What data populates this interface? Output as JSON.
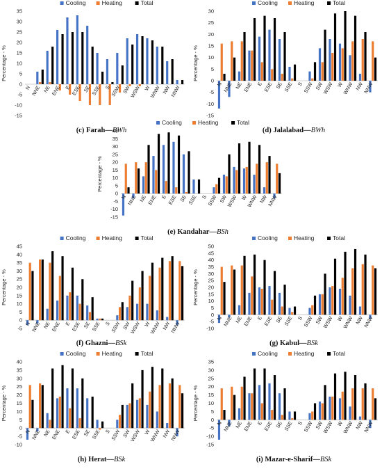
{
  "colors": {
    "cooling": "#4472C4",
    "heating": "#ED7D31",
    "total": "#000000"
  },
  "legend_labels": [
    "Cooling",
    "Heating",
    "Total"
  ],
  "chart_data": [
    {
      "type": "bar",
      "id": "c",
      "caption": "(c) Farah—BWh",
      "ylabel": "Percentage - %",
      "ylim": [
        -15,
        35
      ],
      "yticks": [
        -15,
        -10,
        -5,
        0,
        5,
        10,
        15,
        20,
        25,
        30,
        35
      ],
      "legend": "top",
      "categories": [
        "N",
        "NNE",
        "NE",
        "ENE",
        "E",
        "ESE",
        "SE",
        "SSE",
        "S",
        "SSW",
        "SW",
        "WSW",
        "W",
        "WNW",
        "NW",
        "NNW"
      ],
      "series": [
        {
          "name": "Cooling",
          "values": [
            0,
            6,
            16,
            26,
            32,
            33,
            28,
            15,
            12,
            15,
            22,
            24,
            22,
            18,
            11,
            2
          ]
        },
        {
          "name": "Heating",
          "values": [
            0,
            1,
            1,
            -3,
            -5,
            -8,
            -10,
            -10,
            -10,
            -4,
            -1,
            -1,
            0,
            0,
            0,
            0
          ]
        },
        {
          "name": "Total",
          "values": [
            0,
            7,
            18,
            24,
            25,
            25,
            18,
            6,
            1,
            9,
            19,
            23,
            21,
            18,
            12,
            2
          ]
        }
      ]
    },
    {
      "type": "bar",
      "id": "d",
      "caption": "(d) Jalalabad—BWh",
      "ylabel": "Percentage - %",
      "ylim": [
        -15,
        30
      ],
      "yticks": [
        -15,
        -10,
        -5,
        0,
        5,
        10,
        15,
        20,
        25,
        30
      ],
      "legend": "top",
      "categories": [
        "N",
        "NNE",
        "NE",
        "ENE",
        "E",
        "ESE",
        "SE",
        "SSE",
        "S",
        "SSW",
        "SW",
        "WSW",
        "W",
        "WNW",
        "NW",
        "NNW"
      ],
      "series": [
        {
          "name": "Cooling",
          "values": [
            -12,
            -7,
            4,
            13,
            19,
            22,
            18,
            6,
            0,
            4,
            14,
            18,
            16,
            11,
            3,
            -5
          ]
        },
        {
          "name": "Heating",
          "values": [
            16,
            17,
            17,
            13,
            8,
            5,
            3,
            1,
            0,
            1,
            8,
            12,
            14,
            17,
            18,
            17
          ]
        },
        {
          "name": "Total",
          "values": [
            3,
            10,
            21,
            27,
            28,
            27,
            21,
            7,
            0,
            8,
            22,
            29,
            30,
            28,
            21,
            10
          ]
        }
      ]
    },
    {
      "type": "bar",
      "id": "e",
      "caption": "(e) Kandahar—BSh",
      "ylabel": "Percentage - %",
      "ylim": [
        -15,
        40
      ],
      "yticks": [
        -15,
        -10,
        -5,
        0,
        5,
        10,
        15,
        20,
        25,
        30,
        35,
        40
      ],
      "legend": "top",
      "categories": [
        "N",
        "NNE",
        "NE",
        "ENE",
        "E",
        "ESE",
        "SE",
        "SSE",
        "S",
        "SSW",
        "SW",
        "WSW",
        "W",
        "WNW",
        "NW",
        "NNW"
      ],
      "series": [
        {
          "name": "Cooling",
          "values": [
            -14,
            -3,
            11,
            24,
            31,
            33,
            25,
            9,
            0,
            4,
            12,
            17,
            16,
            12,
            4,
            -3
          ]
        },
        {
          "name": "Heating",
          "values": [
            19,
            20,
            20,
            15,
            8,
            4,
            1,
            0,
            0,
            6,
            11,
            15,
            17,
            19,
            20,
            19
          ]
        },
        {
          "name": "Total",
          "values": [
            4,
            16,
            31,
            38,
            39,
            37,
            27,
            9,
            0,
            10,
            25,
            32,
            33,
            31,
            24,
            13
          ]
        }
      ]
    },
    {
      "type": "bar",
      "id": "f",
      "caption": "(f) Ghazni—BSk",
      "ylabel": "Percentage - %",
      "ylim": [
        -5,
        45
      ],
      "yticks": [
        -5,
        0,
        5,
        10,
        15,
        20,
        25,
        30,
        35,
        40,
        45
      ],
      "legend": "top",
      "categories": [
        "N",
        "NNE",
        "NE",
        "ENE",
        "E",
        "ESE",
        "SE",
        "SSE",
        "S",
        "SSW",
        "SW",
        "WSW",
        "W",
        "WNW",
        "NW",
        "NNW"
      ],
      "series": [
        {
          "name": "Cooling",
          "values": [
            -3,
            -2,
            7,
            12,
            15,
            15,
            9,
            1,
            0,
            3,
            8,
            10,
            10,
            6,
            2,
            -3
          ]
        },
        {
          "name": "Heating",
          "values": [
            35,
            37,
            35,
            27,
            17,
            10,
            5,
            1,
            0,
            8,
            15,
            20,
            27,
            32,
            36,
            36
          ]
        },
        {
          "name": "Total",
          "values": [
            30,
            37,
            42,
            39,
            32,
            25,
            14,
            1,
            0,
            11,
            24,
            30,
            35,
            38,
            39,
            33
          ]
        }
      ]
    },
    {
      "type": "bar",
      "id": "g",
      "caption": "(g) Kabul—BSk",
      "ylabel": "Percentage - %",
      "ylim": [
        -10,
        50
      ],
      "yticks": [
        -10,
        -5,
        0,
        5,
        10,
        15,
        20,
        25,
        30,
        35,
        40,
        45,
        50
      ],
      "legend": "top",
      "categories": [
        "N",
        "NNE",
        "NE",
        "ENE",
        "E",
        "ESE",
        "SE",
        "SSE",
        "S",
        "SSW",
        "SW",
        "WSW",
        "W",
        "WNW",
        "NW",
        "NNW"
      ],
      "series": [
        {
          "name": "Cooling",
          "values": [
            -6,
            -2,
            7,
            16,
            20,
            21,
            16,
            5,
            0,
            5,
            15,
            20,
            19,
            14,
            6,
            -3
          ]
        },
        {
          "name": "Heating",
          "values": [
            35,
            36,
            36,
            28,
            19,
            11,
            6,
            2,
            0,
            7,
            15,
            21,
            27,
            34,
            37,
            36
          ]
        },
        {
          "name": "Total",
          "values": [
            24,
            33,
            43,
            44,
            40,
            32,
            22,
            6,
            0,
            14,
            30,
            41,
            46,
            48,
            44,
            34
          ]
        }
      ]
    },
    {
      "type": "bar",
      "id": "h",
      "caption": "(h) Herat—BSk",
      "ylabel": "Percentage - %",
      "ylim": [
        -10,
        40
      ],
      "yticks": [
        -10,
        -5,
        0,
        5,
        10,
        15,
        20,
        25,
        30,
        35,
        40
      ],
      "legend": "top",
      "categories": [
        "N",
        "NNE",
        "NE",
        "ENE",
        "E",
        "ESE",
        "SE",
        "SSE",
        "S",
        "SSW",
        "SW",
        "WSW",
        "W",
        "WNW",
        "NW",
        "NNW"
      ],
      "series": [
        {
          "name": "Cooling",
          "values": [
            -7,
            -2,
            9,
            18,
            24,
            24,
            18,
            5,
            0,
            5,
            14,
            17,
            14,
            10,
            3,
            -5
          ]
        },
        {
          "name": "Heating",
          "values": [
            26,
            27,
            5,
            19,
            12,
            6,
            0,
            -1,
            0,
            8,
            15,
            18,
            22,
            26,
            27,
            26
          ]
        },
        {
          "name": "Total",
          "values": [
            17,
            26,
            36,
            38,
            36,
            30,
            19,
            4,
            0,
            14,
            27,
            35,
            37,
            36,
            30,
            21
          ]
        }
      ]
    },
    {
      "type": "bar",
      "id": "i",
      "caption": "(i) Mazar-e-Sharif—BSk",
      "ylabel": "Percentage - %",
      "ylim": [
        -15,
        35
      ],
      "yticks": [
        -15,
        -10,
        -5,
        0,
        5,
        10,
        15,
        20,
        25,
        30,
        35
      ],
      "legend": "top",
      "categories": [
        "N",
        "NNE",
        "NE",
        "ENE",
        "E",
        "ESE",
        "SE",
        "SSE",
        "S",
        "SSW",
        "SW",
        "WSW",
        "W",
        "WNW",
        "NW",
        "NNW"
      ],
      "series": [
        {
          "name": "Cooling",
          "values": [
            -12,
            -4,
            7,
            16,
            21,
            22,
            16,
            5,
            0,
            4,
            11,
            14,
            13,
            8,
            2,
            -5
          ]
        },
        {
          "name": "Heating",
          "values": [
            19,
            20,
            20,
            16,
            10,
            6,
            3,
            1,
            0,
            5,
            10,
            14,
            17,
            19,
            19,
            19
          ]
        },
        {
          "name": "Total",
          "values": [
            6,
            15,
            26,
            31,
            31,
            27,
            19,
            5,
            0,
            10,
            21,
            28,
            29,
            27,
            22,
            13
          ]
        }
      ]
    }
  ]
}
